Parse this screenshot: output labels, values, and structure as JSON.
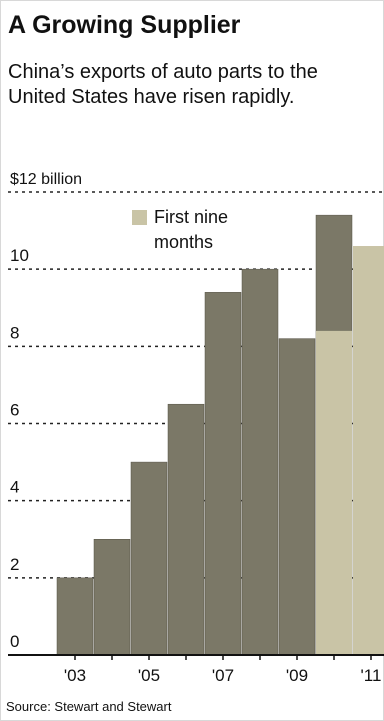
{
  "title": "A Growing Supplier",
  "subtitle": "China’s exports of auto parts to the United States have risen rapidly.",
  "source": "Source: Stewart and Stewart",
  "legend": {
    "label_line1": "First nine",
    "label_line2": "months"
  },
  "colors": {
    "full_year": "#7b7867",
    "first_nine_months": "#c9c4a6",
    "axis": "#111111",
    "grid": "#222222"
  },
  "chart_data": {
    "type": "bar",
    "title": "A Growing Supplier",
    "ylabel": "$12 billion",
    "ylim": [
      0,
      12
    ],
    "yticks": [
      0,
      2,
      4,
      6,
      8,
      10,
      12
    ],
    "ytick_labels": [
      "0",
      "2",
      "4",
      "6",
      "8",
      "10",
      "$12 billion"
    ],
    "grid": true,
    "legend_position": "top-left",
    "categories": [
      "2003",
      "2004",
      "2005",
      "2006",
      "2007",
      "2008",
      "2009",
      "2010",
      "2011"
    ],
    "xtick_labels": [
      "'03",
      "",
      "'05",
      "",
      "'07",
      "",
      "'09",
      "",
      "'11"
    ],
    "series": [
      {
        "values": [
          2.0,
          3.0,
          5.0,
          6.5,
          9.4,
          10.0,
          8.2,
          11.4,
          null
        ]
      },
      {
        "name": "First nine months",
        "values": [
          null,
          null,
          null,
          null,
          null,
          null,
          null,
          8.4,
          10.6
        ]
      }
    ]
  }
}
